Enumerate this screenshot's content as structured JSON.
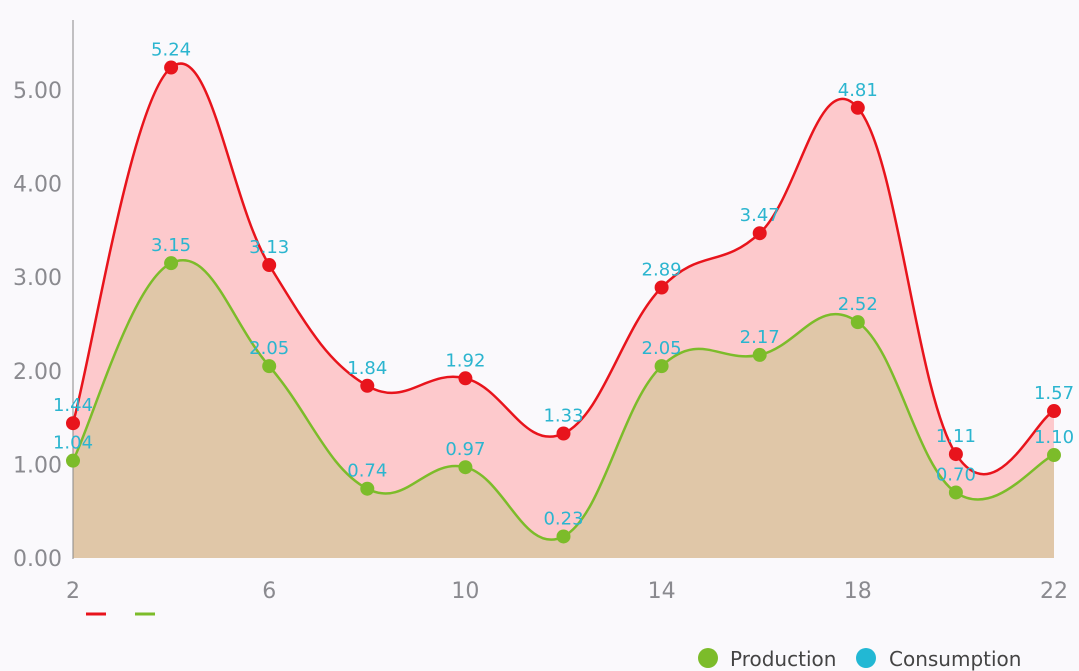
{
  "chart_data": {
    "type": "area",
    "x": [
      2,
      4,
      6,
      8,
      10,
      12,
      14,
      16,
      18,
      20,
      22
    ],
    "series": [
      {
        "values": [
          1.44,
          5.24,
          3.13,
          1.84,
          1.92,
          1.33,
          2.89,
          3.47,
          4.81,
          1.11,
          1.57
        ],
        "line_color": "#e8141c",
        "fill_color": "#fdc9cc"
      },
      {
        "values": [
          1.04,
          3.15,
          2.05,
          0.74,
          0.97,
          0.23,
          2.05,
          2.17,
          2.52,
          0.7,
          1.1
        ],
        "line_color": "#7cbc2a",
        "fill_color": "#e0c7a8"
      }
    ],
    "x_ticks": [
      "2",
      "6",
      "10",
      "14",
      "18",
      "22"
    ],
    "y_ticks": [
      "0.00",
      "1.00",
      "2.00",
      "3.00",
      "4.00",
      "5.00"
    ],
    "xlim": [
      2,
      22
    ],
    "ylim": [
      0,
      5.7
    ],
    "smooth": true,
    "grid": false,
    "value_label_color": "#2bb5cf",
    "legend": {
      "placement": "bottom-right",
      "entries": [
        {
          "label": "Production",
          "color": "#7cbc2a"
        },
        {
          "label": "Consumption",
          "color": "#22b8d4"
        }
      ]
    },
    "series_legend_placement": "bottom-left"
  }
}
